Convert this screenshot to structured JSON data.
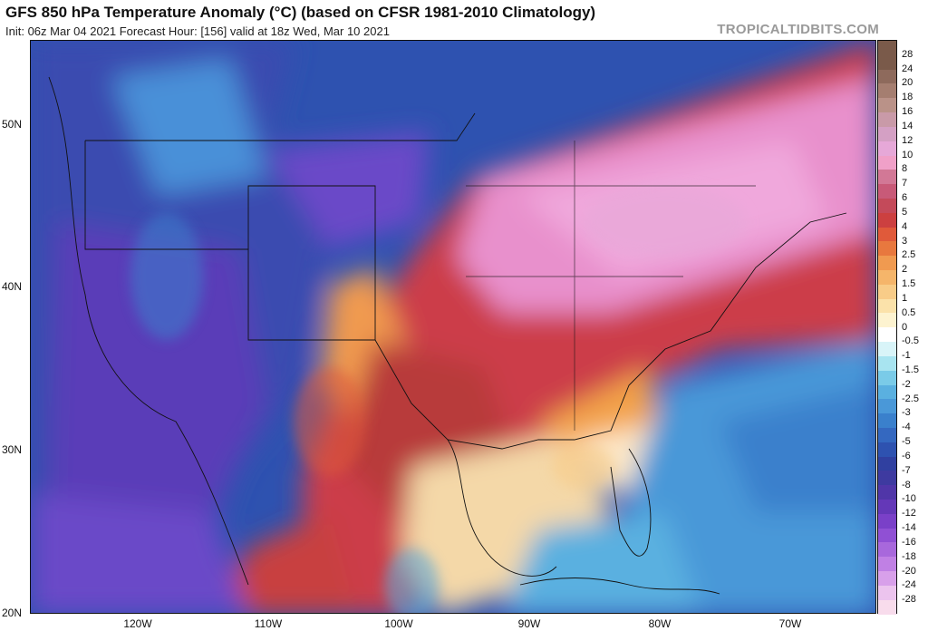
{
  "header": {
    "title": "GFS 850 hPa Temperature Anomaly (°C) (based on CFSR 1981-2010 Climatology)",
    "subtitle": "Init: 06z Mar 04 2021   Forecast Hour: [156]   valid at 18z Wed, Mar 10 2021",
    "brand": "TROPICALTIDBITS.COM"
  },
  "axes": {
    "lat_labels": [
      "50N",
      "40N",
      "30N",
      "20N"
    ],
    "lon_labels": [
      "120W",
      "110W",
      "100W",
      "90W",
      "80W",
      "70W"
    ]
  },
  "colorbar": {
    "labels": [
      "28",
      "24",
      "20",
      "18",
      "16",
      "14",
      "12",
      "10",
      "8",
      "7",
      "6",
      "5",
      "4",
      "3",
      "2.5",
      "2",
      "1.5",
      "1",
      "0.5",
      "0",
      "-0.5",
      "-1",
      "-1.5",
      "-2",
      "-2.5",
      "-3",
      "-4",
      "-5",
      "-6",
      "-7",
      "-8",
      "-10",
      "-12",
      "-14",
      "-16",
      "-18",
      "-20",
      "-24",
      "-28"
    ],
    "colors": [
      "#7a5a4a",
      "#8e6a5c",
      "#a57e70",
      "#ba9288",
      "#c99aa8",
      "#d4a0c4",
      "#e6a8d8",
      "#f0a0c8",
      "#d27896",
      "#c85a78",
      "#c44a5a",
      "#cc4040",
      "#e05a3a",
      "#e8783e",
      "#f09a50",
      "#f5b56a",
      "#f8cc88",
      "#fbe2aa",
      "#fdf3d0",
      "#ffffff",
      "#d8f4f8",
      "#a8e4f0",
      "#7acbe8",
      "#5ab0e0",
      "#4a98d8",
      "#3a80cc",
      "#3468c0",
      "#2e52b0",
      "#3040a0",
      "#3e3aa0",
      "#5036a8",
      "#6438b8",
      "#7a40c8",
      "#9050d4",
      "#a868dc",
      "#c080e4",
      "#d8a0ea",
      "#ecc4ee",
      "#f8dcec"
    ]
  }
}
